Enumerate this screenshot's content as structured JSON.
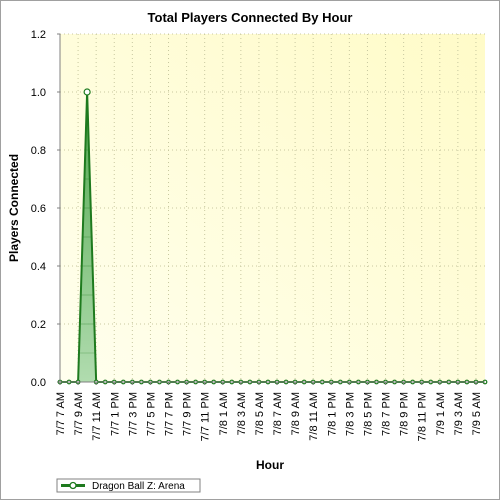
{
  "chart_data": {
    "type": "area",
    "title": "Total Players Connected By Hour",
    "xlabel": "Hour",
    "ylabel": "Players Connected",
    "ylim": [
      0,
      1.2
    ],
    "yticks": [
      "0.0",
      "0.2",
      "0.4",
      "0.6",
      "0.8",
      "1.0",
      "1.2"
    ],
    "categories": [
      "7/7 7 AM",
      "7/7 8 AM",
      "7/7 9 AM",
      "7/7 10 AM",
      "7/7 11 AM",
      "7/7 12 PM",
      "7/7 1 PM",
      "7/7 2 PM",
      "7/7 3 PM",
      "7/7 4 PM",
      "7/7 5 PM",
      "7/7 6 PM",
      "7/7 7 PM",
      "7/7 8 PM",
      "7/7 9 PM",
      "7/7 10 PM",
      "7/7 11 PM",
      "7/8 12 AM",
      "7/8 1 AM",
      "7/8 2 AM",
      "7/8 3 AM",
      "7/8 4 AM",
      "7/8 5 AM",
      "7/8 6 AM",
      "7/8 7 AM",
      "7/8 8 AM",
      "7/8 9 AM",
      "7/8 10 AM",
      "7/8 11 AM",
      "7/8 12 PM",
      "7/8 1 PM",
      "7/8 2 PM",
      "7/8 3 PM",
      "7/8 4 PM",
      "7/8 5 PM",
      "7/8 6 PM",
      "7/8 7 PM",
      "7/8 8 PM",
      "7/8 9 PM",
      "7/8 10 PM",
      "7/8 11 PM",
      "7/9 12 AM",
      "7/9 1 AM",
      "7/9 2 AM",
      "7/9 3 AM",
      "7/9 4 AM",
      "7/9 5 AM",
      "7/9 6 AM"
    ],
    "x_tick_labels": [
      "7/7 7 AM",
      "7/7 9 AM",
      "7/7 11 AM",
      "7/7 1 PM",
      "7/7 3 PM",
      "7/7 5 PM",
      "7/7 7 PM",
      "7/7 9 PM",
      "7/7 11 PM",
      "7/8 1 AM",
      "7/8 3 AM",
      "7/8 5 AM",
      "7/8 7 AM",
      "7/8 9 AM",
      "7/8 11 AM",
      "7/8 1 PM",
      "7/8 3 PM",
      "7/8 5 PM",
      "7/8 7 PM",
      "7/8 9 PM",
      "7/8 11 PM",
      "7/9 1 AM",
      "7/9 3 AM",
      "7/9 5 AM"
    ],
    "series": [
      {
        "name": "Dragon Ball Z: Arena",
        "values": [
          0,
          0,
          0,
          1,
          0,
          0,
          0,
          0,
          0,
          0,
          0,
          0,
          0,
          0,
          0,
          0,
          0,
          0,
          0,
          0,
          0,
          0,
          0,
          0,
          0,
          0,
          0,
          0,
          0,
          0,
          0,
          0,
          0,
          0,
          0,
          0,
          0,
          0,
          0,
          0,
          0,
          0,
          0,
          0,
          0,
          0,
          0,
          0
        ]
      }
    ],
    "grid": true,
    "legend_position": "bottom-left",
    "colors": {
      "line": "#1e7a1e",
      "fill": "#7cc07c",
      "plot_bg_light": "#ffffee",
      "plot_bg_dark": "#fffbc8",
      "grid": "#c8c8a0"
    }
  }
}
